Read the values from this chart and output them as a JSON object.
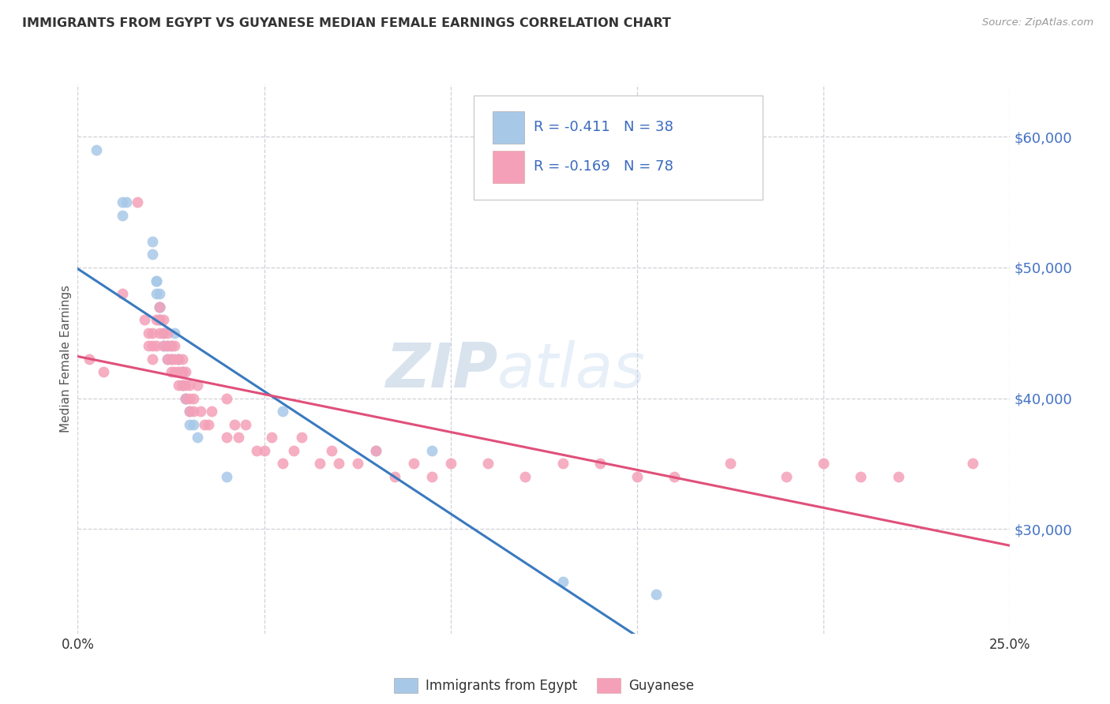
{
  "title": "IMMIGRANTS FROM EGYPT VS GUYANESE MEDIAN FEMALE EARNINGS CORRELATION CHART",
  "source": "Source: ZipAtlas.com",
  "ylabel": "Median Female Earnings",
  "yticks": [
    30000,
    40000,
    50000,
    60000
  ],
  "ytick_labels": [
    "$30,000",
    "$40,000",
    "$50,000",
    "$60,000"
  ],
  "xlim": [
    0.0,
    0.25
  ],
  "ylim": [
    22000,
    64000
  ],
  "watermark_zip": "ZIP",
  "watermark_atlas": "atlas",
  "legend_text1": "R = -0.411   N = 38",
  "legend_text2": "R = -0.169   N = 78",
  "legend_label1": "Immigrants from Egypt",
  "legend_label2": "Guyanese",
  "color_blue": "#a8c8e8",
  "color_pink": "#f4a0b8",
  "color_blue_line": "#3a7abf",
  "color_pink_line": "#e0507a",
  "color_dash": "#b0b8c8",
  "egypt_x": [
    0.005,
    0.012,
    0.012,
    0.013,
    0.02,
    0.02,
    0.021,
    0.021,
    0.021,
    0.022,
    0.022,
    0.022,
    0.022,
    0.022,
    0.023,
    0.023,
    0.024,
    0.024,
    0.025,
    0.025,
    0.026,
    0.027,
    0.027,
    0.028,
    0.028,
    0.028,
    0.029,
    0.029,
    0.03,
    0.03,
    0.031,
    0.032,
    0.04,
    0.055,
    0.08,
    0.095,
    0.13,
    0.155
  ],
  "egypt_y": [
    59000,
    55000,
    54000,
    55000,
    52000,
    51000,
    49000,
    49000,
    48000,
    48000,
    47000,
    47000,
    46000,
    46000,
    45000,
    44000,
    44000,
    43000,
    44000,
    43000,
    45000,
    43000,
    43000,
    42000,
    42000,
    41000,
    40000,
    40000,
    39000,
    38000,
    38000,
    37000,
    34000,
    39000,
    36000,
    36000,
    26000,
    25000
  ],
  "guyanese_x": [
    0.003,
    0.007,
    0.012,
    0.016,
    0.018,
    0.019,
    0.019,
    0.02,
    0.02,
    0.02,
    0.021,
    0.021,
    0.022,
    0.022,
    0.022,
    0.023,
    0.023,
    0.023,
    0.024,
    0.024,
    0.024,
    0.025,
    0.025,
    0.025,
    0.026,
    0.026,
    0.026,
    0.027,
    0.027,
    0.027,
    0.028,
    0.028,
    0.028,
    0.029,
    0.029,
    0.029,
    0.03,
    0.03,
    0.03,
    0.031,
    0.031,
    0.032,
    0.033,
    0.034,
    0.035,
    0.036,
    0.04,
    0.04,
    0.042,
    0.043,
    0.045,
    0.048,
    0.05,
    0.052,
    0.055,
    0.058,
    0.06,
    0.065,
    0.068,
    0.07,
    0.075,
    0.08,
    0.085,
    0.09,
    0.095,
    0.1,
    0.11,
    0.12,
    0.13,
    0.14,
    0.15,
    0.16,
    0.175,
    0.19,
    0.2,
    0.21,
    0.22,
    0.24
  ],
  "guyanese_y": [
    43000,
    42000,
    48000,
    55000,
    46000,
    45000,
    44000,
    44000,
    45000,
    43000,
    46000,
    44000,
    47000,
    46000,
    45000,
    46000,
    45000,
    44000,
    45000,
    44000,
    43000,
    44000,
    43000,
    42000,
    44000,
    43000,
    42000,
    43000,
    42000,
    41000,
    43000,
    42000,
    41000,
    42000,
    41000,
    40000,
    41000,
    40000,
    39000,
    40000,
    39000,
    41000,
    39000,
    38000,
    38000,
    39000,
    40000,
    37000,
    38000,
    37000,
    38000,
    36000,
    36000,
    37000,
    35000,
    36000,
    37000,
    35000,
    36000,
    35000,
    35000,
    36000,
    34000,
    35000,
    34000,
    35000,
    35000,
    34000,
    35000,
    35000,
    34000,
    34000,
    35000,
    34000,
    35000,
    34000,
    34000,
    35000
  ]
}
